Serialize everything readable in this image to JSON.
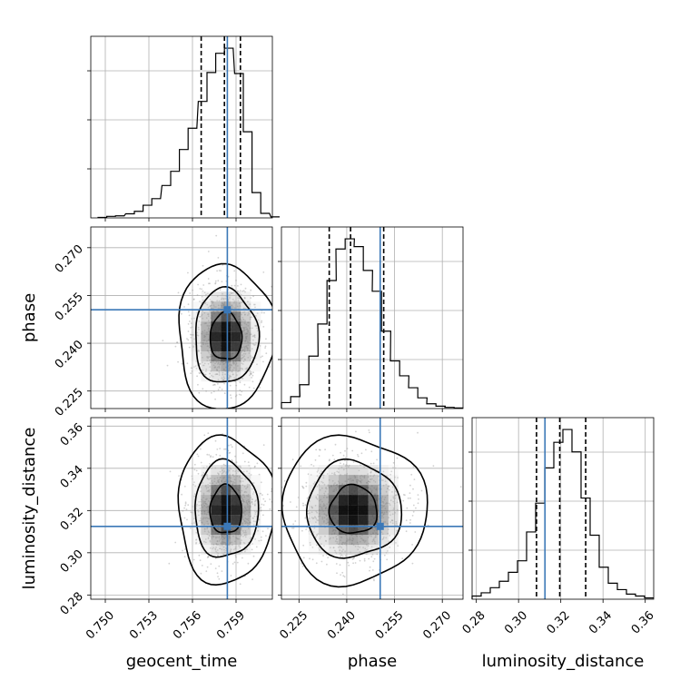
{
  "chart_data": {
    "type": "corner",
    "parameters": [
      {
        "name": "geocent_time",
        "label": "geocent_time",
        "range": [
          0.749,
          0.7615
        ],
        "ticks": [
          0.75,
          0.753,
          0.756,
          0.759
        ],
        "tick_labels": [
          "0.750",
          "0.753",
          "0.756",
          "0.759"
        ],
        "truth": 0.7584,
        "quantiles": [
          0.7566,
          0.7582,
          0.7593
        ],
        "mean": 0.7583,
        "sd": 0.0011,
        "hist_bins": [
          0.7495,
          0.7501,
          0.7507,
          0.7514,
          0.752,
          0.7526,
          0.7532,
          0.7539,
          0.7545,
          0.7551,
          0.7557,
          0.7564,
          0.757,
          0.7576,
          0.7582,
          0.7589,
          0.7595,
          0.7601,
          0.7607,
          0.7614
        ],
        "hist_counts": [
          1,
          3,
          4,
          8,
          13,
          25,
          38,
          64,
          92,
          135,
          177,
          230,
          287,
          325,
          335,
          285,
          170,
          50,
          9,
          2
        ]
      },
      {
        "name": "phase",
        "label": "phase",
        "range": [
          0.2195,
          0.2765
        ],
        "ticks": [
          0.225,
          0.24,
          0.255,
          0.27
        ],
        "tick_labels": [
          "0.225",
          "0.240",
          "0.255",
          "0.270"
        ],
        "truth": 0.2505,
        "quantiles": [
          0.2345,
          0.2412,
          0.2516
        ],
        "mean": 0.2421,
        "sd": 0.0075,
        "hist_bins": [
          0.2195,
          0.2224,
          0.2252,
          0.2281,
          0.2309,
          0.2338,
          0.2366,
          0.2395,
          0.2423,
          0.2452,
          0.248,
          0.2509,
          0.2537,
          0.2566,
          0.2594,
          0.2623,
          0.2651,
          0.268,
          0.2708,
          0.2737
        ],
        "hist_counts": [
          10,
          20,
          40,
          88,
          142,
          215,
          268,
          285,
          272,
          232,
          197,
          130,
          80,
          55,
          35,
          18,
          8,
          4,
          2,
          1
        ]
      },
      {
        "name": "luminosity_distance",
        "label": "luminosity_distance",
        "range": [
          0.278,
          0.364
        ],
        "ticks": [
          0.28,
          0.3,
          0.32,
          0.34,
          0.36
        ],
        "tick_labels": [
          "0.28",
          "0.30",
          "0.32",
          "0.34",
          "0.36"
        ],
        "truth": 0.3125,
        "quantiles": [
          0.3085,
          0.3195,
          0.3318
        ],
        "mean": 0.3203,
        "sd": 0.0115,
        "hist_bins": [
          0.278,
          0.2823,
          0.2866,
          0.2909,
          0.2952,
          0.2995,
          0.3038,
          0.3081,
          0.3124,
          0.3167,
          0.321,
          0.3253,
          0.3296,
          0.3339,
          0.3382,
          0.3425,
          0.3468,
          0.3511,
          0.3554,
          0.3597
        ],
        "hist_counts": [
          5,
          10,
          18,
          28,
          42,
          60,
          105,
          150,
          205,
          245,
          265,
          230,
          158,
          100,
          50,
          25,
          15,
          8,
          5,
          2
        ]
      }
    ],
    "contour_levels": [
      0.39,
      0.86,
      0.99
    ],
    "grid": true,
    "title": "",
    "legend": "none"
  }
}
